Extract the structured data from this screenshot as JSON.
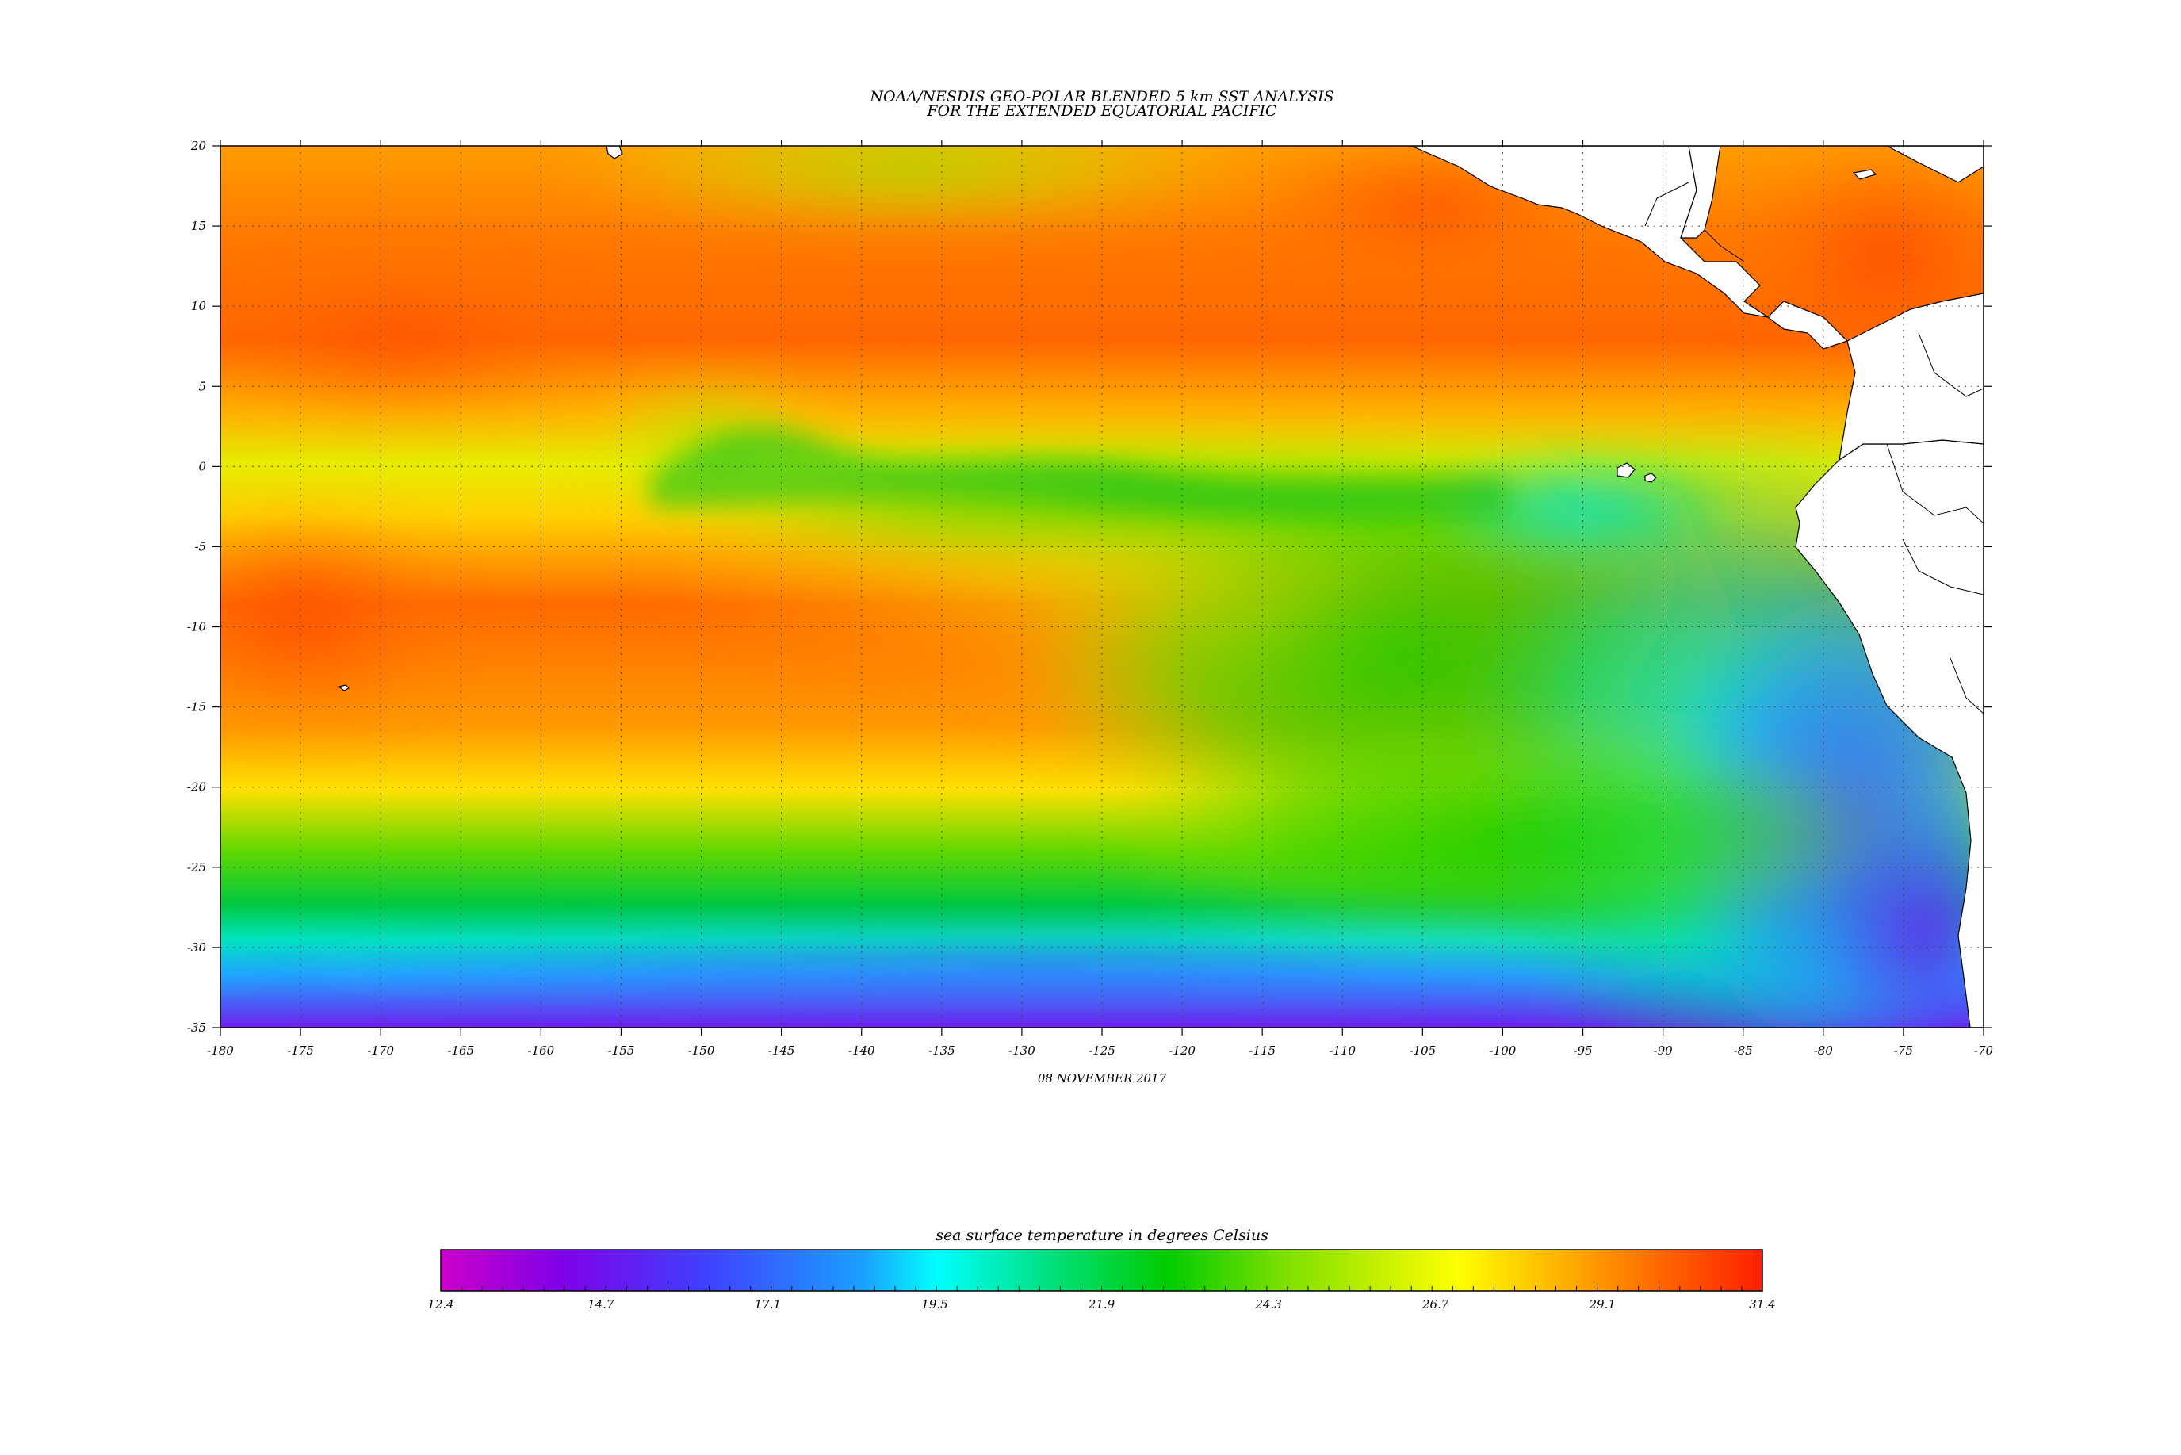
{
  "title_lines": [
    "NOAA/NESDIS GEO-POLAR BLENDED 5 km SST ANALYSIS",
    "FOR THE EXTENDED EQUATORIAL PACIFIC"
  ],
  "date": "08 NOVEMBER 2017",
  "map": {
    "lon_range": [
      -180,
      -70
    ],
    "lat_range": [
      -35,
      20
    ],
    "lon_ticks": [
      "-180",
      "-175",
      "-170",
      "-165",
      "-160",
      "-155",
      "-150",
      "-145",
      "-140",
      "-135",
      "-130",
      "-125",
      "-120",
      "-115",
      "-110",
      "-105",
      "-100",
      "-95",
      "-90",
      "-85",
      "-80",
      "-75",
      "-70"
    ],
    "lat_ticks": [
      "20",
      "15",
      "10",
      "5",
      "0",
      "-5",
      "-10",
      "-15",
      "-20",
      "-25",
      "-30",
      "-35"
    ],
    "grid": "dotted",
    "land_color": "#ffffff"
  },
  "colorbar": {
    "title": "sea surface temperature in degrees Celsius",
    "labels": [
      "12.4",
      "14.7",
      "17.1",
      "19.5",
      "21.9",
      "24.3",
      "26.7",
      "29.1",
      "31.4"
    ],
    "range": [
      12.4,
      31.4
    ],
    "colors": [
      "#cc00cc",
      "#8000e6",
      "#4040ff",
      "#1aa0ff",
      "#00ffff",
      "#00e080",
      "#00cc00",
      "#80e000",
      "#ffff00",
      "#ffb000",
      "#ff6000",
      "#ff2000"
    ]
  }
}
